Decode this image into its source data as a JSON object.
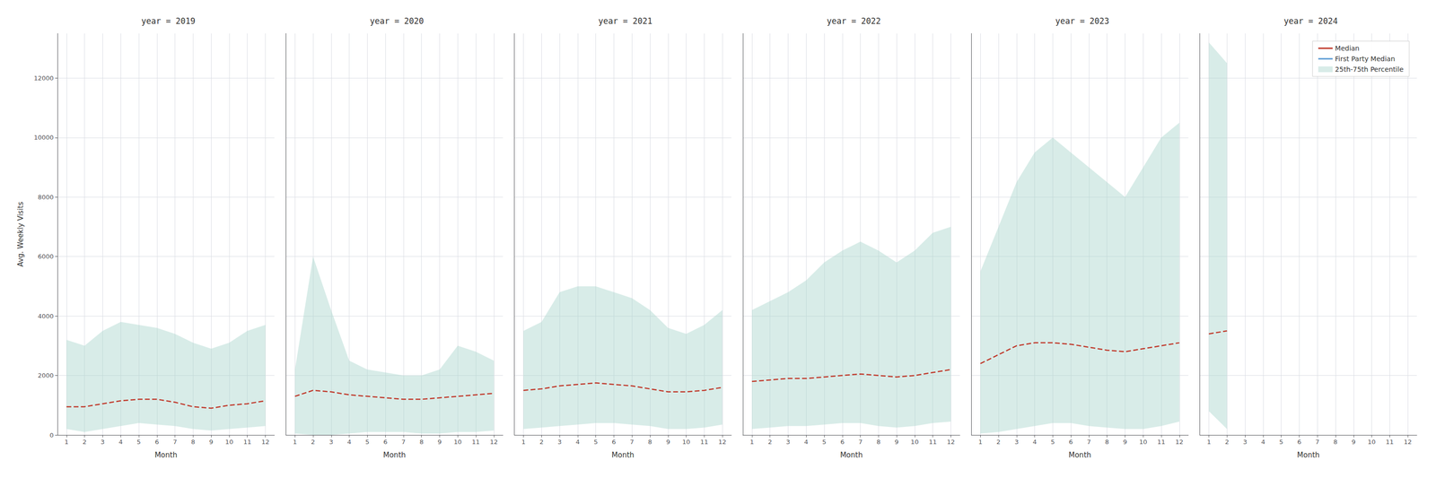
{
  "chart_data": [
    {
      "type": "line",
      "title": "year = 2019",
      "xlabel": "Month",
      "ylabel": "Avg. Weekly Visits",
      "x": [
        1,
        2,
        3,
        4,
        5,
        6,
        7,
        8,
        9,
        10,
        11,
        12
      ],
      "xlim": [
        0.5,
        12.5
      ],
      "xticks": [
        1,
        2,
        3,
        4,
        5,
        6,
        7,
        8,
        9,
        10,
        11,
        12
      ],
      "ylim": [
        0,
        13500
      ],
      "yticks": [
        0,
        2000,
        4000,
        6000,
        8000,
        10000,
        12000
      ],
      "grid": true,
      "series": [
        {
          "name": "Median",
          "type": "line",
          "color": "#c0392b",
          "line_style": "dashed",
          "values": [
            950,
            950,
            1050,
            1150,
            1200,
            1200,
            1100,
            950,
            900,
            1000,
            1050,
            1150
          ]
        },
        {
          "name": "25th-75th Percentile",
          "type": "band",
          "color": "#a8d5cc",
          "lower": [
            200,
            100,
            200,
            300,
            400,
            350,
            300,
            200,
            150,
            200,
            250,
            300
          ],
          "upper": [
            3200,
            3000,
            3500,
            3800,
            3700,
            3600,
            3400,
            3100,
            2900,
            3100,
            3500,
            3700
          ]
        }
      ]
    },
    {
      "type": "line",
      "title": "year = 2020",
      "xlabel": "Month",
      "tick_labels": "x",
      "x": [
        1,
        2,
        3,
        4,
        5,
        6,
        7,
        8,
        9,
        10,
        11,
        12
      ],
      "xlim": [
        0.5,
        12.5
      ],
      "xticks": [
        1,
        2,
        3,
        4,
        5,
        6,
        7,
        8,
        9,
        10,
        11,
        12
      ],
      "ylim": [
        0,
        13500
      ],
      "yticks": [
        0,
        2000,
        4000,
        6000,
        8000,
        10000,
        12000
      ],
      "grid": true,
      "series": [
        {
          "name": "Median",
          "type": "line",
          "color": "#c0392b",
          "line_style": "dashed",
          "values": [
            1300,
            1500,
            1450,
            1350,
            1300,
            1250,
            1200,
            1200,
            1250,
            1300,
            1350,
            1400
          ]
        },
        {
          "name": "25th-75th Percentile",
          "type": "band",
          "color": "#a8d5cc",
          "lower": [
            50,
            0,
            0,
            50,
            100,
            100,
            100,
            50,
            50,
            100,
            100,
            150
          ],
          "upper": [
            2200,
            6000,
            4200,
            2500,
            2200,
            2100,
            2000,
            2000,
            2200,
            3000,
            2800,
            2500
          ]
        }
      ]
    },
    {
      "type": "line",
      "title": "year = 2021",
      "xlabel": "Month",
      "tick_labels": "x",
      "x": [
        1,
        2,
        3,
        4,
        5,
        6,
        7,
        8,
        9,
        10,
        11,
        12
      ],
      "xlim": [
        0.5,
        12.5
      ],
      "xticks": [
        1,
        2,
        3,
        4,
        5,
        6,
        7,
        8,
        9,
        10,
        11,
        12
      ],
      "ylim": [
        0,
        13500
      ],
      "yticks": [
        0,
        2000,
        4000,
        6000,
        8000,
        10000,
        12000
      ],
      "grid": true,
      "series": [
        {
          "name": "Median",
          "type": "line",
          "color": "#c0392b",
          "line_style": "dashed",
          "values": [
            1500,
            1550,
            1650,
            1700,
            1750,
            1700,
            1650,
            1550,
            1450,
            1450,
            1500,
            1600
          ]
        },
        {
          "name": "25th-75th Percentile",
          "type": "band",
          "color": "#a8d5cc",
          "lower": [
            200,
            250,
            300,
            350,
            400,
            400,
            350,
            300,
            200,
            200,
            250,
            350
          ],
          "upper": [
            3500,
            3800,
            4800,
            5000,
            5000,
            4800,
            4600,
            4200,
            3600,
            3400,
            3700,
            4200
          ]
        }
      ]
    },
    {
      "type": "line",
      "title": "year = 2022",
      "xlabel": "Month",
      "tick_labels": "x",
      "x": [
        1,
        2,
        3,
        4,
        5,
        6,
        7,
        8,
        9,
        10,
        11,
        12
      ],
      "xlim": [
        0.5,
        12.5
      ],
      "xticks": [
        1,
        2,
        3,
        4,
        5,
        6,
        7,
        8,
        9,
        10,
        11,
        12
      ],
      "ylim": [
        0,
        13500
      ],
      "yticks": [
        0,
        2000,
        4000,
        6000,
        8000,
        10000,
        12000
      ],
      "grid": true,
      "series": [
        {
          "name": "Median",
          "type": "line",
          "color": "#c0392b",
          "line_style": "dashed",
          "values": [
            1800,
            1850,
            1900,
            1900,
            1950,
            2000,
            2050,
            2000,
            1950,
            2000,
            2100,
            2200
          ]
        },
        {
          "name": "25th-75th Percentile",
          "type": "band",
          "color": "#a8d5cc",
          "lower": [
            200,
            250,
            300,
            300,
            350,
            400,
            400,
            300,
            250,
            300,
            400,
            450
          ],
          "upper": [
            4200,
            4500,
            4800,
            5200,
            5800,
            6200,
            6500,
            6200,
            5800,
            6200,
            6800,
            7000
          ]
        }
      ]
    },
    {
      "type": "line",
      "title": "year = 2023",
      "xlabel": "Month",
      "tick_labels": "x",
      "x": [
        1,
        2,
        3,
        4,
        5,
        6,
        7,
        8,
        9,
        10,
        11,
        12
      ],
      "xlim": [
        0.5,
        12.5
      ],
      "xticks": [
        1,
        2,
        3,
        4,
        5,
        6,
        7,
        8,
        9,
        10,
        11,
        12
      ],
      "ylim": [
        0,
        13500
      ],
      "yticks": [
        0,
        2000,
        4000,
        6000,
        8000,
        10000,
        12000
      ],
      "grid": true,
      "series": [
        {
          "name": "Median",
          "type": "line",
          "color": "#c0392b",
          "line_style": "dashed",
          "values": [
            2400,
            2700,
            3000,
            3100,
            3100,
            3050,
            2950,
            2850,
            2800,
            2900,
            3000,
            3100
          ]
        },
        {
          "name": "25th-75th Percentile",
          "type": "band",
          "color": "#a8d5cc",
          "lower": [
            50,
            100,
            200,
            300,
            400,
            400,
            300,
            250,
            200,
            200,
            300,
            450
          ],
          "upper": [
            5500,
            7000,
            8500,
            9500,
            10000,
            9500,
            9000,
            8500,
            8000,
            9000,
            10000,
            10500
          ]
        }
      ]
    },
    {
      "type": "line",
      "title": "year = 2024",
      "xlabel": "Month",
      "tick_labels": "x",
      "legend": "upper right",
      "x": [
        1,
        2,
        3,
        4,
        5,
        6,
        7,
        8,
        9,
        10,
        11,
        12
      ],
      "xlim": [
        0.5,
        12.5
      ],
      "xticks": [
        1,
        2,
        3,
        4,
        5,
        6,
        7,
        8,
        9,
        10,
        11,
        12
      ],
      "ylim": [
        0,
        13500
      ],
      "yticks": [
        0,
        2000,
        4000,
        6000,
        8000,
        10000,
        12000
      ],
      "grid": true,
      "series": [
        {
          "name": "Median",
          "type": "line",
          "color": "#c0392b",
          "line_style": "dashed",
          "values": [
            3400,
            3500,
            null,
            null,
            null,
            null,
            null,
            null,
            null,
            null,
            null,
            null
          ]
        },
        {
          "name": "First Party Median",
          "type": "line",
          "color": "#5b9bd5",
          "line_style": "dashed",
          "values": [
            null,
            null,
            null,
            null,
            null,
            null,
            null,
            null,
            null,
            null,
            null,
            null
          ]
        },
        {
          "name": "25th-75th Percentile",
          "type": "band",
          "color": "#a8d5cc",
          "lower": [
            800,
            200,
            null,
            null,
            null,
            null,
            null,
            null,
            null,
            null,
            null,
            null
          ],
          "upper": [
            13200,
            12500,
            null,
            null,
            null,
            null,
            null,
            null,
            null,
            null,
            null,
            null
          ]
        }
      ]
    }
  ]
}
